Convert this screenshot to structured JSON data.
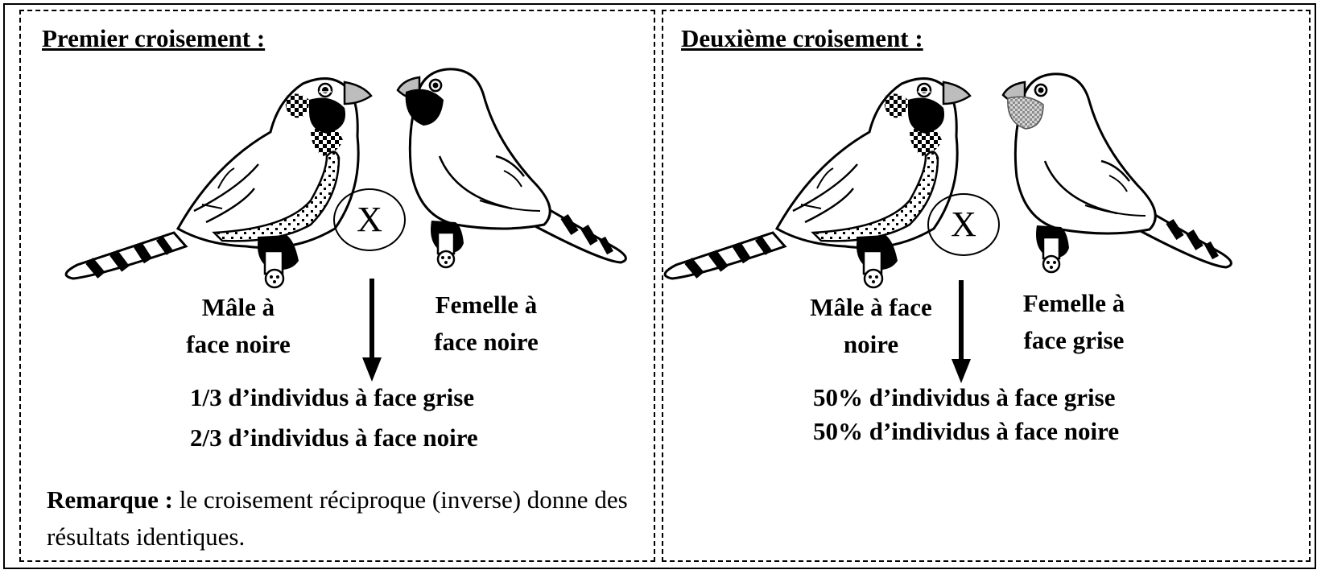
{
  "panel1": {
    "title": "Premier croisement :",
    "cross_symbol": "X",
    "male_label": "Mâle à\nface noire",
    "female_label": "Femelle à\nface noire",
    "result_line1": "1/3 d’individus à face grise",
    "result_line2": "2/3 d’individus à face noire",
    "remark_label": "Remarque :",
    "remark_text": " le croisement réciproque (inverse) donne des résultats identiques."
  },
  "panel2": {
    "title": "Deuxième croisement :",
    "cross_symbol": "X",
    "male_label": "Mâle à face\nnoire",
    "female_label": "Femelle à\nface grise",
    "result_line1": "50% d’individus à face grise",
    "result_line2": "50% d’individus à face noire"
  },
  "colors": {
    "ink": "#000000",
    "beak": "#bdbdbd",
    "grey_face": "#b0b0b0"
  },
  "icons": {
    "male_bird": "male-finch-black-face",
    "female_black": "female-finch-black-face",
    "female_grey": "female-finch-grey-face"
  }
}
